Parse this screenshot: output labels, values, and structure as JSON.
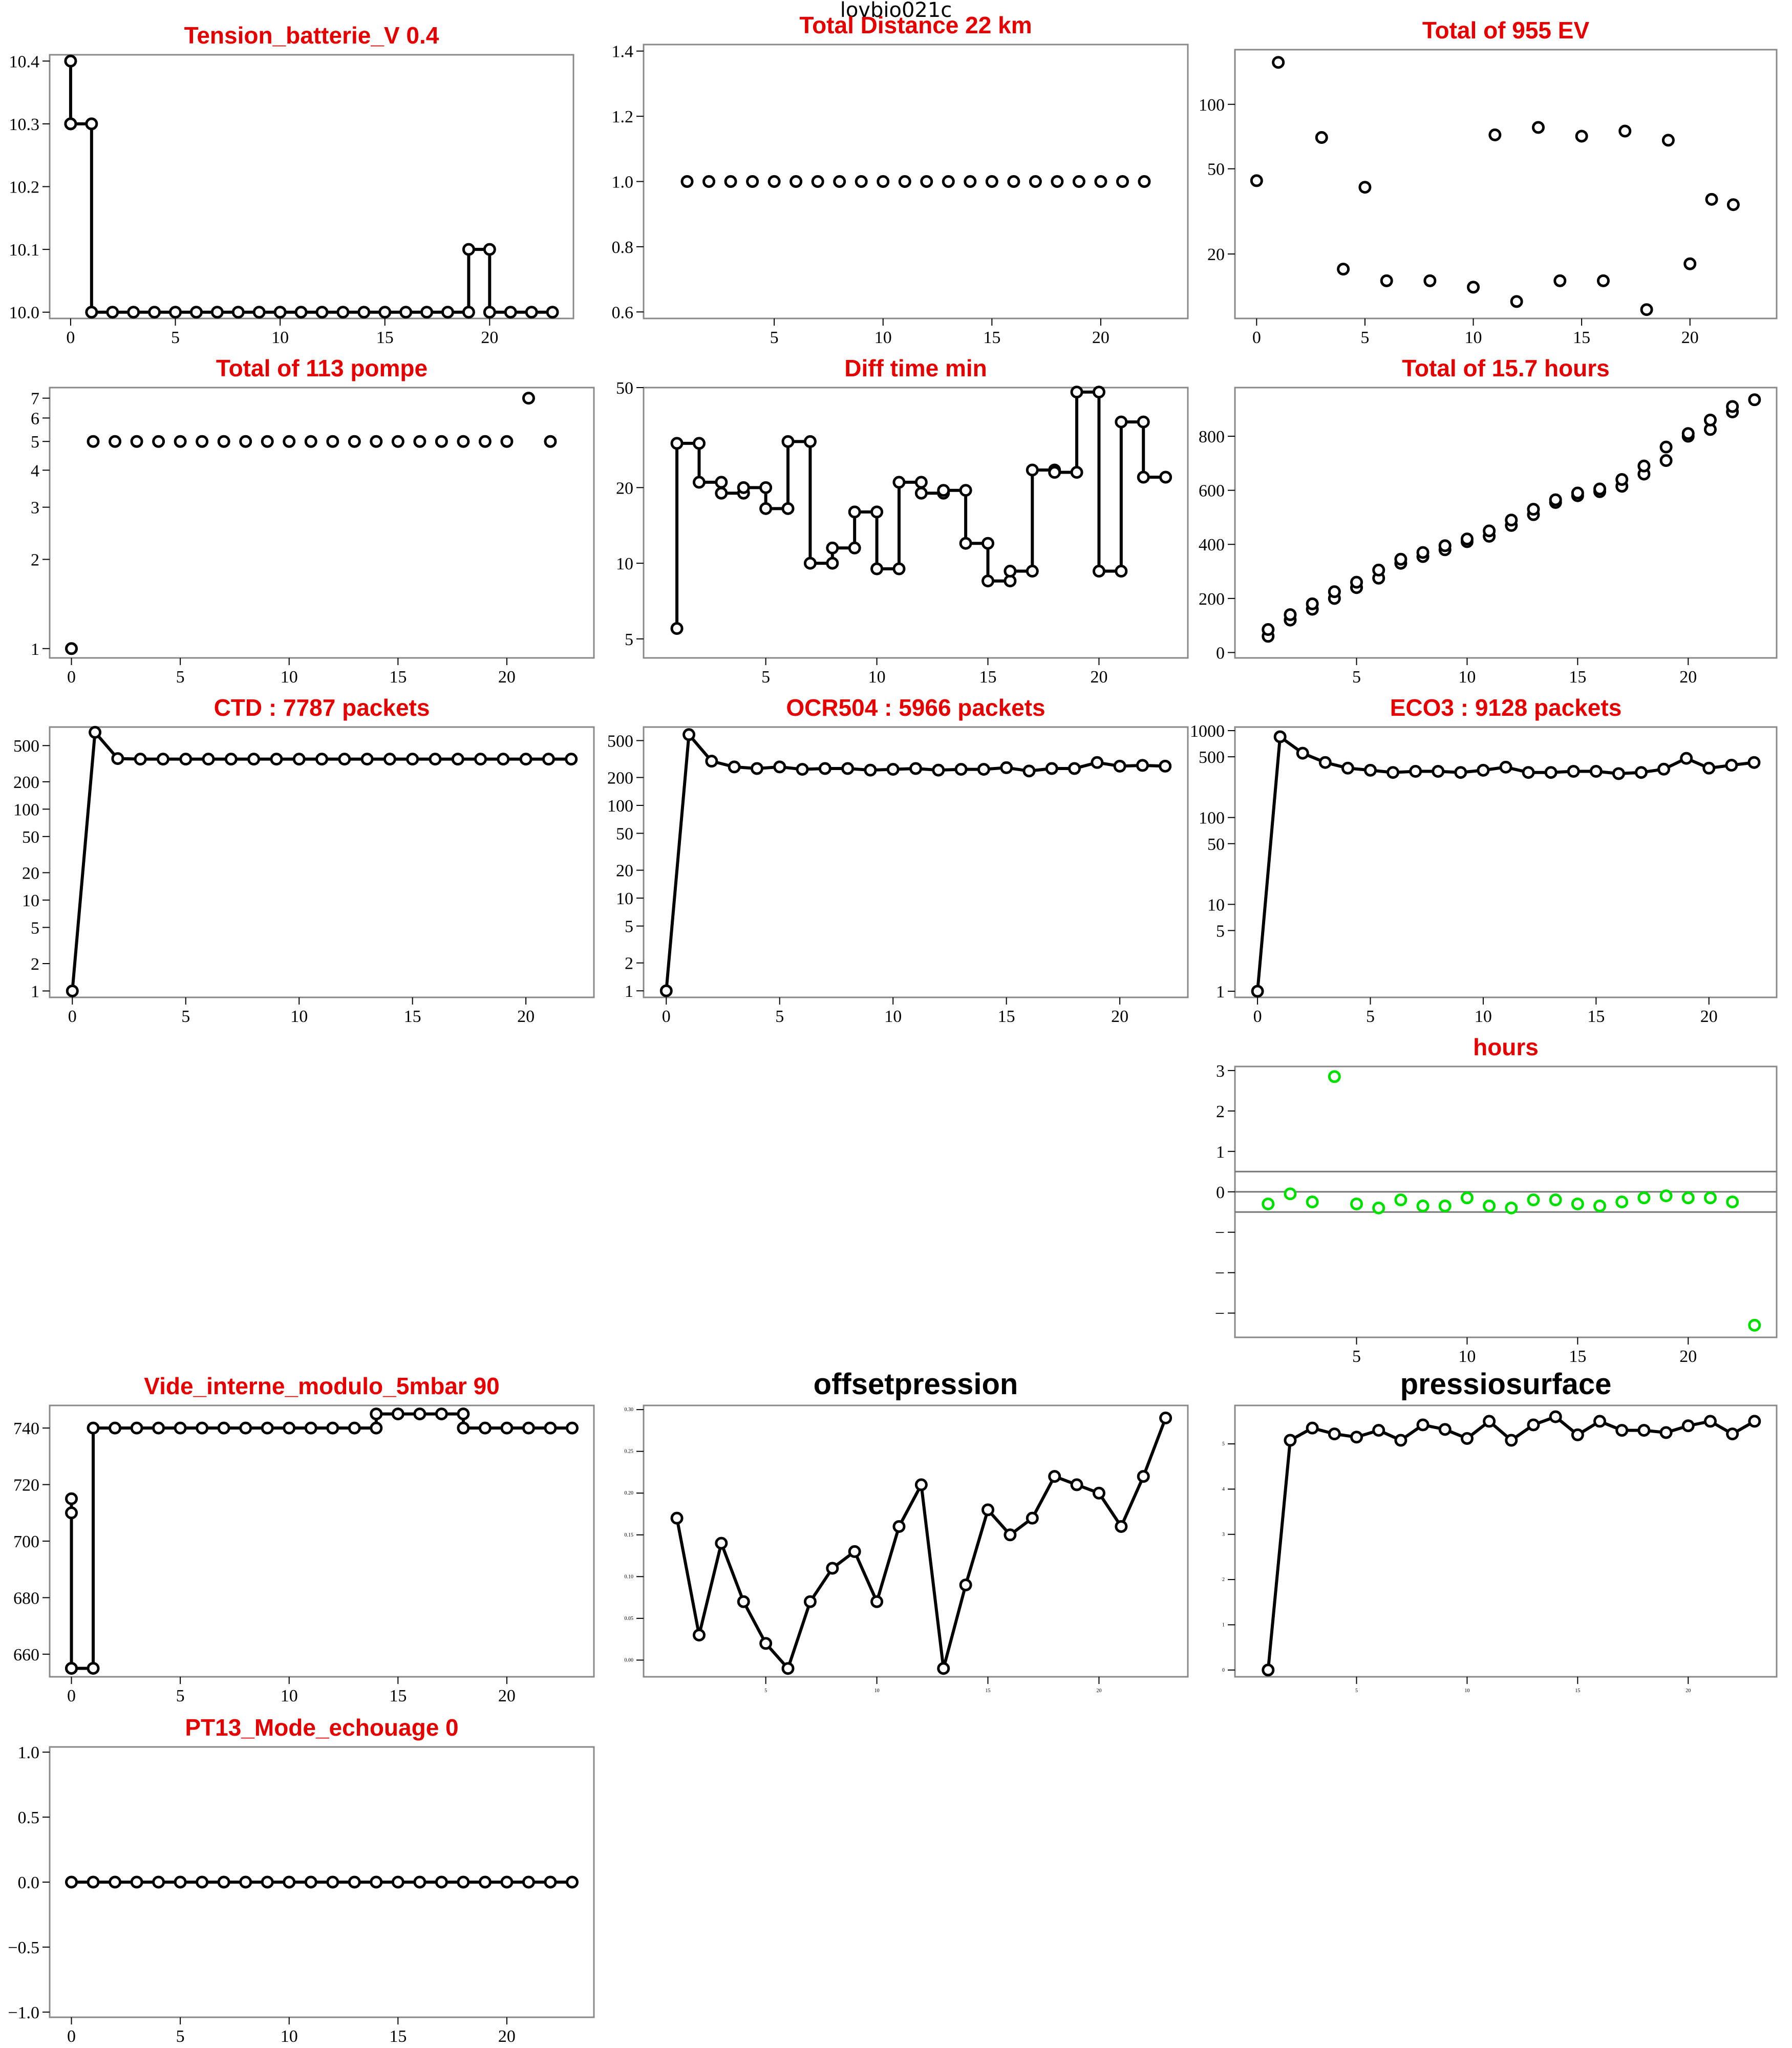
{
  "main_title": "lovbio021c",
  "colors": {
    "title": "#e60000",
    "title_black": "#000000",
    "mark": "#000000",
    "green": "#00e000",
    "frame": "#888888"
  },
  "chart_data": [
    {
      "type": "line",
      "title": "Tension_batterie_V 0.4",
      "title_color": "red",
      "style": "step",
      "x": [
        0,
        0,
        0,
        1,
        1,
        2,
        3,
        4,
        5,
        6,
        7,
        8,
        9,
        10,
        11,
        12,
        13,
        14,
        15,
        16,
        17,
        18,
        19,
        19,
        20,
        20,
        21,
        22,
        23
      ],
      "y": [
        10.3,
        10.4,
        10.3,
        10.3,
        10.0,
        10.0,
        10.0,
        10.0,
        10.0,
        10.0,
        10.0,
        10.0,
        10.0,
        10.0,
        10.0,
        10.0,
        10.0,
        10.0,
        10.0,
        10.0,
        10.0,
        10.0,
        10.0,
        10.1,
        10.1,
        10.0,
        10.0,
        10.0,
        10.0
      ],
      "xlim": [
        -1,
        24
      ],
      "ylim": [
        9.99,
        10.41
      ],
      "xticks": [
        0,
        5,
        10,
        15,
        20
      ],
      "xtick_labels": [
        "0",
        "5",
        "10",
        "15",
        "20"
      ],
      "yticks": [
        10.0,
        10.1,
        10.2,
        10.3,
        10.4
      ],
      "ytick_labels": [
        "10.0",
        "10.1",
        "10.2",
        "10.3",
        "10.4"
      ]
    },
    {
      "type": "scatter",
      "title": "Total Distance  22  km",
      "title_color": "red",
      "x": [
        1,
        2,
        3,
        4,
        5,
        6,
        7,
        8,
        9,
        10,
        11,
        12,
        13,
        14,
        15,
        16,
        17,
        18,
        19,
        20,
        21,
        22
      ],
      "y": [
        1,
        1,
        1,
        1,
        1,
        1,
        1,
        1,
        1,
        1,
        1,
        1,
        1,
        1,
        1,
        1,
        1,
        1,
        1,
        1,
        1,
        1
      ],
      "xlim": [
        -1,
        24
      ],
      "ylim": [
        0.58,
        1.42
      ],
      "xticks": [
        5,
        10,
        15,
        20
      ],
      "xtick_labels": [
        "5",
        "10",
        "15",
        "20"
      ],
      "yticks": [
        0.6,
        0.8,
        1.0,
        1.2,
        1.4
      ],
      "ytick_labels": [
        "0.6",
        "0.8",
        "1.0",
        "1.2",
        "1.4"
      ]
    },
    {
      "type": "scatter",
      "title": "Total of  955  EV",
      "title_color": "red",
      "yscale": "log",
      "x": [
        0,
        1,
        3,
        4,
        5,
        6,
        8,
        10,
        11,
        12,
        13,
        14,
        15,
        16,
        17,
        18,
        19,
        20,
        21,
        22
      ],
      "y": [
        44,
        157,
        70,
        17,
        41,
        15,
        15,
        14,
        72,
        12,
        78,
        15,
        71,
        15,
        75,
        11,
        68,
        18,
        36,
        34
      ],
      "xlim": [
        -1,
        24
      ],
      "ylim": [
        10,
        180
      ],
      "xticks": [
        0,
        5,
        10,
        15,
        20
      ],
      "xtick_labels": [
        "0",
        "5",
        "10",
        "15",
        "20"
      ],
      "yticks": [
        20,
        50,
        100
      ],
      "ytick_labels": [
        "20",
        "50",
        "100"
      ]
    },
    {
      "type": "scatter",
      "title": "Total of  113  pompe",
      "title_color": "red",
      "yscale": "log",
      "x": [
        0,
        1,
        2,
        3,
        4,
        5,
        6,
        7,
        8,
        9,
        10,
        11,
        12,
        13,
        14,
        15,
        16,
        17,
        18,
        19,
        20,
        21,
        22
      ],
      "y": [
        1,
        5,
        5,
        5,
        5,
        5,
        5,
        5,
        5,
        5,
        5,
        5,
        5,
        5,
        5,
        5,
        5,
        5,
        5,
        5,
        5,
        7,
        5
      ],
      "xlim": [
        -1,
        24
      ],
      "ylim": [
        0.93,
        7.6
      ],
      "xticks": [
        0,
        5,
        10,
        15,
        20
      ],
      "xtick_labels": [
        "0",
        "5",
        "10",
        "15",
        "20"
      ],
      "yticks": [
        1,
        2,
        3,
        4,
        5,
        6,
        7
      ],
      "ytick_labels": [
        "1",
        "2",
        "3",
        "4",
        "5",
        "6",
        "7"
      ]
    },
    {
      "type": "line",
      "title": "Diff time min",
      "title_color": "red",
      "style": "step",
      "yscale": "log",
      "x": [
        1,
        1,
        2,
        2,
        3,
        3,
        4,
        4,
        5,
        5,
        6,
        6,
        7,
        7,
        8,
        8,
        9,
        9,
        10,
        10,
        11,
        11,
        12,
        12,
        13,
        13,
        14,
        14,
        15,
        15,
        16,
        16,
        17,
        17,
        18,
        18,
        19,
        19,
        20,
        20,
        21,
        21,
        22,
        22,
        23
      ],
      "y": [
        5.5,
        30,
        30,
        21,
        21,
        19,
        19,
        20,
        20,
        16.5,
        16.5,
        30.5,
        30.5,
        10,
        10,
        11.5,
        11.5,
        16,
        16,
        9.5,
        9.5,
        21,
        21,
        19,
        19,
        19.5,
        19.5,
        12,
        12,
        8.5,
        8.5,
        9.3,
        9.3,
        23.5,
        23.5,
        23,
        23,
        48,
        48,
        9.3,
        9.3,
        36.5,
        36.5,
        22,
        22
      ],
      "markers_at": "all",
      "xlim": [
        -0.5,
        24
      ],
      "ylim": [
        4.2,
        50
      ],
      "xticks": [
        5,
        10,
        15,
        20
      ],
      "xtick_labels": [
        "5",
        "10",
        "15",
        "20"
      ],
      "yticks": [
        5,
        10,
        20,
        50
      ],
      "ytick_labels": [
        "5",
        "10",
        "20",
        "50"
      ]
    },
    {
      "type": "scatter",
      "title": "Total of  15.7  hours",
      "title_color": "red",
      "x": [
        1,
        1,
        2,
        2,
        3,
        3,
        4,
        4,
        5,
        5,
        6,
        6,
        7,
        7,
        8,
        8,
        9,
        9,
        10,
        10,
        11,
        11,
        12,
        12,
        13,
        13,
        14,
        14,
        15,
        15,
        16,
        16,
        17,
        17,
        18,
        18,
        19,
        19,
        20,
        20,
        21,
        21,
        22,
        22,
        23
      ],
      "y": [
        60,
        85,
        120,
        140,
        160,
        180,
        200,
        225,
        240,
        260,
        275,
        305,
        330,
        345,
        355,
        370,
        380,
        395,
        410,
        420,
        430,
        450,
        470,
        490,
        510,
        530,
        555,
        565,
        580,
        590,
        595,
        605,
        615,
        640,
        660,
        690,
        710,
        760,
        800,
        810,
        825,
        860,
        890,
        910,
        935
      ],
      "xlim": [
        -0.5,
        24
      ],
      "ylim": [
        -20,
        980
      ],
      "xticks": [
        5,
        10,
        15,
        20
      ],
      "xtick_labels": [
        "5",
        "10",
        "15",
        "20"
      ],
      "yticks": [
        0,
        200,
        400,
        600,
        800
      ],
      "ytick_labels": [
        "0",
        "200",
        "400",
        "600",
        "800"
      ]
    },
    {
      "type": "line",
      "title": "CTD  : 7787  packets",
      "title_color": "red",
      "yscale": "log",
      "x": [
        0,
        1,
        2,
        3,
        4,
        5,
        6,
        7,
        8,
        9,
        10,
        11,
        12,
        13,
        14,
        15,
        16,
        17,
        18,
        19,
        20,
        21,
        22
      ],
      "y": [
        1,
        700,
        360,
        355,
        355,
        355,
        355,
        355,
        355,
        355,
        355,
        355,
        355,
        355,
        355,
        355,
        355,
        355,
        355,
        355,
        355,
        355,
        355
      ],
      "xlim": [
        -1,
        23
      ],
      "ylim": [
        0.85,
        800
      ],
      "xticks": [
        0,
        5,
        10,
        15,
        20
      ],
      "xtick_labels": [
        "0",
        "5",
        "10",
        "15",
        "20"
      ],
      "yticks": [
        1,
        2,
        5,
        10,
        20,
        50,
        100,
        200,
        500
      ],
      "ytick_labels": [
        "1",
        "2",
        "5",
        "10",
        "20",
        "50",
        "100",
        "200",
        "500"
      ]
    },
    {
      "type": "line",
      "title": "OCR504  : 5966  packets",
      "title_color": "red",
      "yscale": "log",
      "x": [
        0,
        1,
        2,
        3,
        4,
        5,
        6,
        7,
        8,
        9,
        10,
        11,
        12,
        13,
        14,
        15,
        16,
        17,
        18,
        19,
        20,
        21,
        22
      ],
      "y": [
        1,
        580,
        300,
        260,
        250,
        260,
        245,
        250,
        250,
        240,
        245,
        250,
        240,
        245,
        245,
        255,
        235,
        250,
        250,
        290,
        265,
        270,
        265
      ],
      "xlim": [
        -1,
        23
      ],
      "ylim": [
        0.85,
        700
      ],
      "xticks": [
        0,
        5,
        10,
        15,
        20
      ],
      "xtick_labels": [
        "0",
        "5",
        "10",
        "15",
        "20"
      ],
      "yticks": [
        1,
        2,
        5,
        10,
        20,
        50,
        100,
        200,
        500
      ],
      "ytick_labels": [
        "1",
        "2",
        "5",
        "10",
        "20",
        "50",
        "100",
        "200",
        "500"
      ]
    },
    {
      "type": "line",
      "title": "ECO3  : 9128  packets",
      "title_color": "red",
      "yscale": "log",
      "x": [
        0,
        1,
        2,
        3,
        4,
        5,
        6,
        7,
        8,
        9,
        10,
        11,
        12,
        13,
        14,
        15,
        16,
        17,
        18,
        19,
        20,
        21,
        22
      ],
      "y": [
        1,
        850,
        550,
        430,
        370,
        350,
        330,
        340,
        340,
        330,
        350,
        380,
        330,
        330,
        340,
        340,
        320,
        330,
        360,
        480,
        370,
        400,
        430
      ],
      "xlim": [
        -1,
        23
      ],
      "ylim": [
        0.85,
        1100
      ],
      "xticks": [
        0,
        5,
        10,
        15,
        20
      ],
      "xtick_labels": [
        "0",
        "5",
        "10",
        "15",
        "20"
      ],
      "yticks": [
        1,
        5,
        10,
        50,
        100,
        500,
        1000
      ],
      "ytick_labels": [
        "1",
        "5",
        "10",
        "50",
        "100",
        "500",
        "1000"
      ]
    },
    {
      "type": "scatter",
      "title": "hours",
      "title_color": "red",
      "color": "green",
      "x": [
        1,
        2,
        3,
        4,
        5,
        6,
        7,
        8,
        9,
        10,
        11,
        12,
        13,
        14,
        15,
        16,
        17,
        18,
        19,
        20,
        21,
        22,
        23
      ],
      "y": [
        -0.3,
        -0.05,
        -0.25,
        2.85,
        -0.3,
        -0.4,
        -0.2,
        -0.35,
        -0.35,
        -0.15,
        -0.35,
        -0.4,
        -0.2,
        -0.2,
        -0.3,
        -0.35,
        -0.25,
        -0.15,
        -0.1,
        -0.15,
        -0.15,
        -0.25,
        -3.3
      ],
      "hlines": [
        0.5,
        0,
        -0.5
      ],
      "xlim": [
        -0.5,
        24
      ],
      "ylim": [
        -3.6,
        3.1
      ],
      "xticks": [
        5,
        10,
        15,
        20
      ],
      "xtick_labels": [
        "5",
        "10",
        "15",
        "20"
      ],
      "yticks": [
        -3,
        -2,
        -1,
        0,
        1,
        2,
        3
      ],
      "ytick_labels": [
        "−",
        "−",
        "−",
        "0",
        "1",
        "2",
        "3"
      ]
    },
    {
      "type": "line",
      "title": "Vide_interne_modulo_5mbar 90",
      "title_color": "red",
      "style": "step",
      "x": [
        0,
        0,
        0,
        0,
        1,
        1,
        2,
        3,
        4,
        5,
        6,
        7,
        8,
        9,
        10,
        11,
        12,
        13,
        14,
        14,
        15,
        16,
        17,
        18,
        18,
        19,
        20,
        21,
        22,
        23
      ],
      "y": [
        655,
        710,
        715,
        655,
        655,
        740,
        740,
        740,
        740,
        740,
        740,
        740,
        740,
        740,
        740,
        740,
        740,
        740,
        740,
        745,
        745,
        745,
        745,
        745,
        740,
        740,
        740,
        740,
        740,
        740
      ],
      "xlim": [
        -1,
        24
      ],
      "ylim": [
        652,
        748
      ],
      "xticks": [
        0,
        5,
        10,
        15,
        20
      ],
      "xtick_labels": [
        "0",
        "5",
        "10",
        "15",
        "20"
      ],
      "yticks": [
        660,
        680,
        700,
        720,
        740
      ],
      "ytick_labels": [
        "660",
        "680",
        "700",
        "720",
        "740"
      ]
    },
    {
      "type": "line",
      "title": "offsetpression",
      "title_color": "black",
      "x": [
        1,
        2,
        3,
        4,
        5,
        6,
        7,
        8,
        9,
        10,
        11,
        12,
        13,
        14,
        15,
        16,
        17,
        18,
        19,
        20,
        21,
        22,
        23
      ],
      "y": [
        0.17,
        0.03,
        0.14,
        0.07,
        0.02,
        -0.01,
        0.07,
        0.11,
        0.13,
        0.07,
        0.16,
        0.21,
        -0.01,
        0.09,
        0.18,
        0.15,
        0.17,
        0.22,
        0.21,
        0.2,
        0.16,
        0.22,
        0.29
      ],
      "xlim": [
        -0.5,
        24
      ],
      "ylim": [
        -0.02,
        0.305
      ],
      "xticks": [
        5,
        10,
        15,
        20
      ],
      "xtick_labels": [
        "5",
        "10",
        "15",
        "20"
      ],
      "yticks": [
        0.0,
        0.05,
        0.1,
        0.15,
        0.2,
        0.25,
        0.3
      ],
      "ytick_labels": [
        "0.00",
        "0.05",
        "0.10",
        "0.15",
        "0.20",
        "0.25",
        "0.30"
      ]
    },
    {
      "type": "line",
      "title": "pressiosurface",
      "title_color": "black",
      "x": [
        1,
        2,
        3,
        4,
        5,
        6,
        7,
        8,
        9,
        10,
        11,
        12,
        13,
        14,
        15,
        16,
        17,
        18,
        19,
        20,
        21,
        22,
        23
      ],
      "y": [
        0,
        5.08,
        5.35,
        5.22,
        5.15,
        5.3,
        5.08,
        5.42,
        5.32,
        5.12,
        5.5,
        5.08,
        5.42,
        5.6,
        5.2,
        5.5,
        5.3,
        5.3,
        5.25,
        5.4,
        5.5,
        5.22,
        5.5
      ],
      "xlim": [
        -0.5,
        24
      ],
      "ylim": [
        -0.15,
        5.85
      ],
      "xticks": [
        5,
        10,
        15,
        20
      ],
      "xtick_labels": [
        "5",
        "10",
        "15",
        "20"
      ],
      "yticks": [
        0,
        1,
        2,
        3,
        4,
        5
      ],
      "ytick_labels": [
        "0",
        "1",
        "2",
        "3",
        "4",
        "5"
      ]
    },
    {
      "type": "line",
      "title": "PT13_Mode_echouage  0",
      "title_color": "red",
      "x": [
        0,
        1,
        2,
        3,
        4,
        5,
        6,
        7,
        8,
        9,
        10,
        11,
        12,
        13,
        14,
        15,
        16,
        17,
        18,
        19,
        20,
        21,
        22,
        23
      ],
      "y": [
        0,
        0,
        0,
        0,
        0,
        0,
        0,
        0,
        0,
        0,
        0,
        0,
        0,
        0,
        0,
        0,
        0,
        0,
        0,
        0,
        0,
        0,
        0,
        0
      ],
      "xlim": [
        -1,
        24
      ],
      "ylim": [
        -1.04,
        1.04
      ],
      "xticks": [
        0,
        5,
        10,
        15,
        20
      ],
      "xtick_labels": [
        "0",
        "5",
        "10",
        "15",
        "20"
      ],
      "yticks": [
        -1,
        -0.5,
        0,
        0.5,
        1
      ],
      "ytick_labels": [
        "−1.0",
        "−0.5",
        "0.0",
        "0.5",
        "1.0"
      ]
    }
  ]
}
